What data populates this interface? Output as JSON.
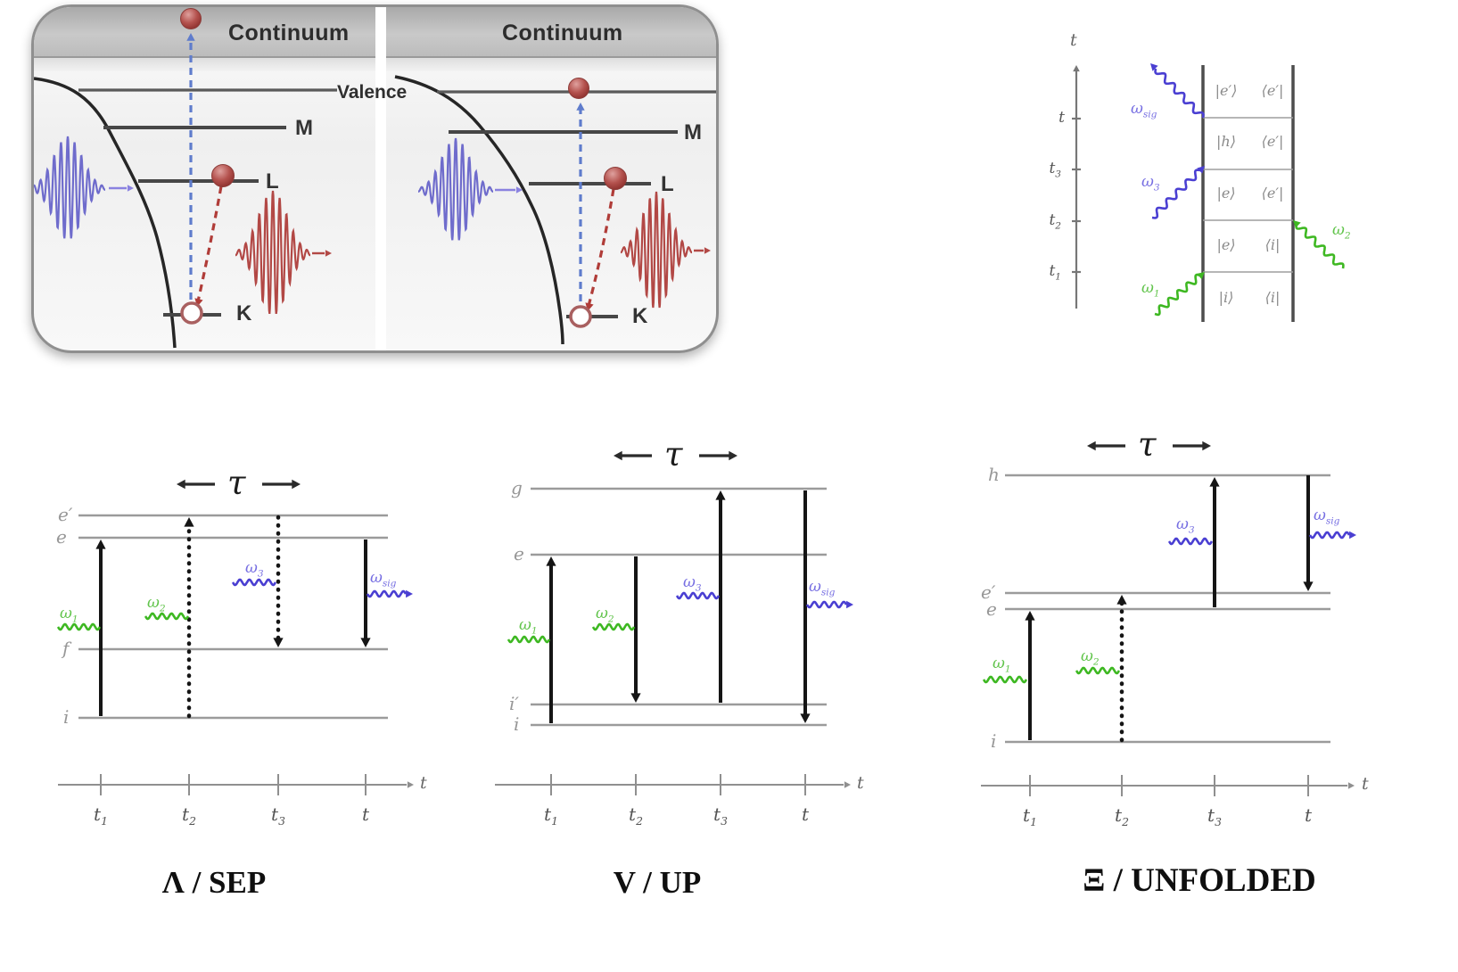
{
  "colors": {
    "green": "#3eb822",
    "blue_violet": "#4a3fd2",
    "red": "#b03c38",
    "pulse_blue": "#6f6ccc",
    "level_gray": "#9b9b9b"
  },
  "atomic": {
    "panel1": {
      "header": "Continuum",
      "valence": "Valence",
      "m": "M",
      "l": "L",
      "k": "K"
    },
    "panel2": {
      "header": "Continuum",
      "m": "M",
      "l": "L",
      "k": "K"
    }
  },
  "feynman": {
    "axis_title": "t",
    "ticks": [
      {
        "b": "t",
        "s": ""
      },
      {
        "b": "t",
        "s": "3"
      },
      {
        "b": "t",
        "s": "2"
      },
      {
        "b": "t",
        "s": "1"
      }
    ],
    "rows": [
      {
        "ket": "|e′⟩",
        "bra": "⟨e′|"
      },
      {
        "ket": "|h⟩",
        "bra": "⟨e′|"
      },
      {
        "ket": "|e⟩",
        "bra": "⟨e′|"
      },
      {
        "ket": "|e⟩",
        "bra": "⟨i|"
      },
      {
        "ket": "|i⟩",
        "bra": "⟨i|"
      }
    ],
    "omega_sig": {
      "b": "ω",
      "s": "sig"
    },
    "omega_3": {
      "b": "ω",
      "s": "3"
    },
    "omega_2": {
      "b": "ω",
      "s": "2"
    },
    "omega_1": {
      "b": "ω",
      "s": "1"
    }
  },
  "lambda": {
    "caption": "Λ / SEP",
    "tau": "τ",
    "levels": {
      "top": "e′",
      "second": "e",
      "third": "f",
      "bottom": "i"
    },
    "omega_1": {
      "b": "ω",
      "s": "1"
    },
    "omega_2": {
      "b": "ω",
      "s": "2"
    },
    "omega_3": {
      "b": "ω",
      "s": "3"
    },
    "omega_sig": {
      "b": "ω",
      "s": "sig"
    },
    "axis": {
      "title": "t",
      "t1": {
        "b": "t",
        "s": "1"
      },
      "t2": {
        "b": "t",
        "s": "2"
      },
      "t3": {
        "b": "t",
        "s": "3"
      },
      "t": {
        "b": "t",
        "s": ""
      }
    }
  },
  "v": {
    "caption": "V / UP",
    "tau": "τ",
    "levels": {
      "top": "g",
      "second": "e",
      "third": "i′",
      "bottom": "i"
    },
    "omega_1": {
      "b": "ω",
      "s": "1"
    },
    "omega_2": {
      "b": "ω",
      "s": "2"
    },
    "omega_3": {
      "b": "ω",
      "s": "3"
    },
    "omega_sig": {
      "b": "ω",
      "s": "sig"
    },
    "axis": {
      "title": "t",
      "t1": {
        "b": "t",
        "s": "1"
      },
      "t2": {
        "b": "t",
        "s": "2"
      },
      "t3": {
        "b": "t",
        "s": "3"
      },
      "t": {
        "b": "t",
        "s": ""
      }
    }
  },
  "xi": {
    "caption": "Ξ / UNFOLDED",
    "tau": "τ",
    "levels": {
      "top": "h",
      "second": "e′",
      "third": "e",
      "bottom": "i"
    },
    "omega_1": {
      "b": "ω",
      "s": "1"
    },
    "omega_2": {
      "b": "ω",
      "s": "2"
    },
    "omega_3": {
      "b": "ω",
      "s": "3"
    },
    "omega_sig": {
      "b": "ω",
      "s": "sig"
    },
    "axis": {
      "title": "t",
      "t1": {
        "b": "t",
        "s": "1"
      },
      "t2": {
        "b": "t",
        "s": "2"
      },
      "t3": {
        "b": "t",
        "s": "3"
      },
      "t": {
        "b": "t",
        "s": ""
      }
    }
  }
}
